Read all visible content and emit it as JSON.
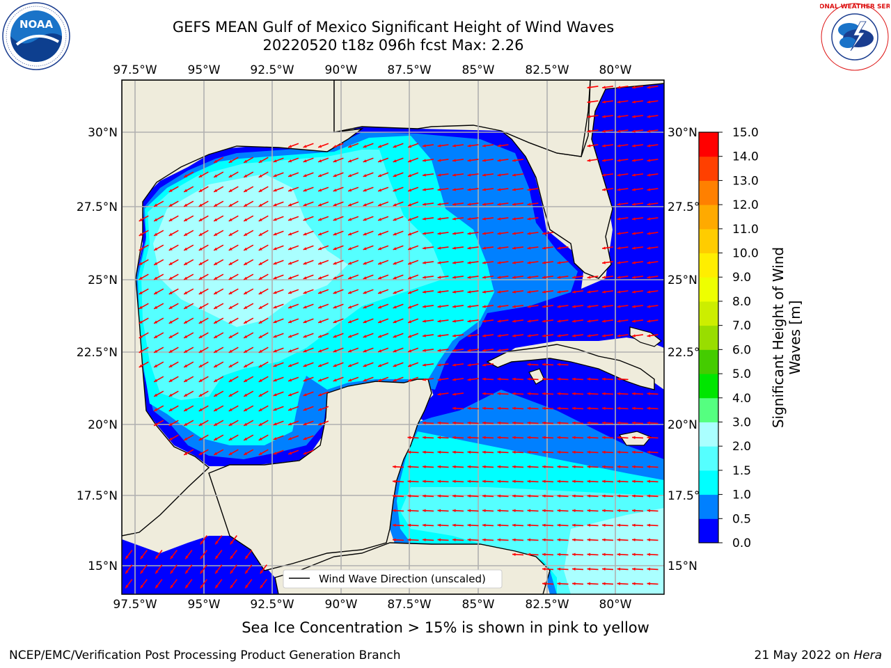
{
  "title": {
    "line1": "GEFS MEAN Gulf of Mexico Significant Height of Wind Waves",
    "line2": "20220520 t18z 096h fcst   Max: 2.26"
  },
  "map": {
    "lon_ticks": [
      "97.5°W",
      "95°W",
      "92.5°W",
      "90°W",
      "87.5°W",
      "85°W",
      "82.5°W",
      "80°W"
    ],
    "lat_ticks": [
      "30°N",
      "27.5°N",
      "25°N",
      "22.5°N",
      "20°N",
      "17.5°N",
      "15°N"
    ],
    "legend_label": "Wind Wave Direction (unscaled)"
  },
  "colorbar": {
    "label_line1": "Significant Height of Wind",
    "label_line2": "Waves [m]",
    "ticks": [
      "0.0",
      "0.5",
      "1.0",
      "1.5",
      "2.0",
      "3.0",
      "4.0",
      "5.0",
      "6.0",
      "7.0",
      "8.0",
      "9.0",
      "10.0",
      "11.0",
      "12.0",
      "13.0",
      "14.0",
      "15.0"
    ],
    "colors": [
      "#0000ff",
      "#0080ff",
      "#00ffff",
      "#55ffff",
      "#aaffff",
      "#55ff80",
      "#00e600",
      "#44cc00",
      "#99dd00",
      "#ccee00",
      "#eeff00",
      "#ffee00",
      "#ffcc00",
      "#ffaa00",
      "#ff8000",
      "#ff4000",
      "#ff0000"
    ]
  },
  "subtitle": "Sea Ice Concentration > 15% is shown in pink to yellow",
  "footer": {
    "left": "NCEP/EMC/Verification Post Processing Product Generation Branch",
    "right_prefix": "21 May 2022 on ",
    "right_host": "Hera"
  },
  "logos": {
    "noaa_text": "NOAA",
    "nws_text": "NATIONAL WEATHER SERVICE"
  },
  "colors": {
    "land": "#efecdc",
    "arrow": "#ff0000",
    "grid": "#b0b0b0"
  }
}
